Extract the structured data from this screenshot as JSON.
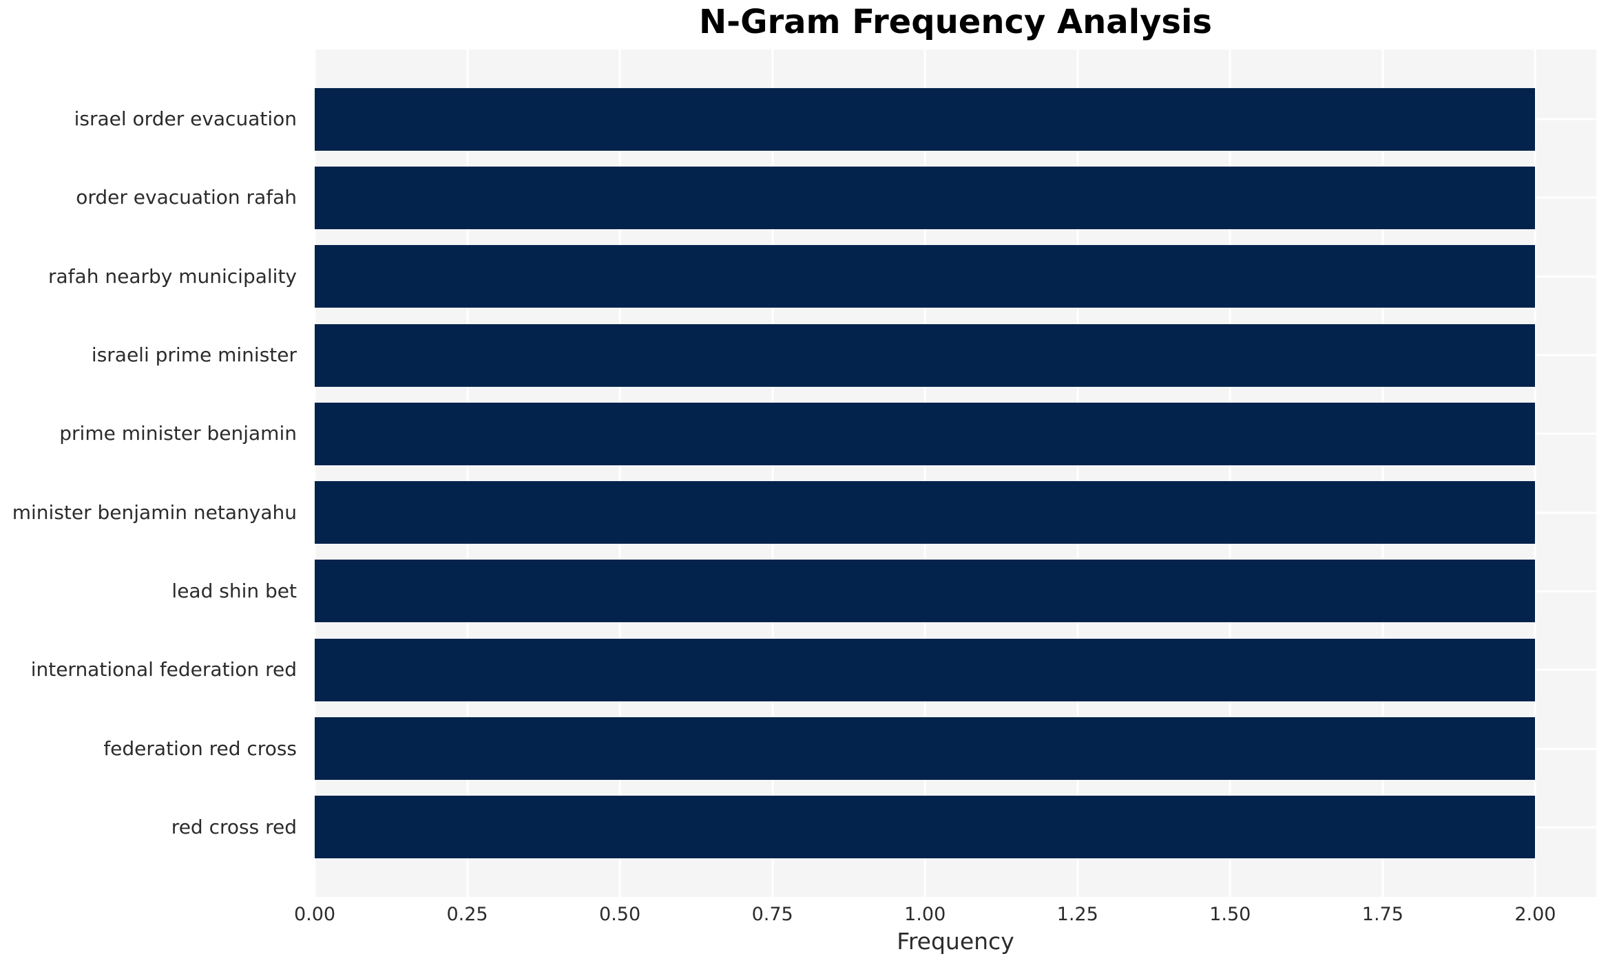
{
  "chart_data": {
    "type": "bar",
    "orientation": "horizontal",
    "title": "N-Gram Frequency Analysis",
    "xlabel": "Frequency",
    "ylabel": "",
    "categories": [
      "israel order evacuation",
      "order evacuation rafah",
      "rafah nearby municipality",
      "israeli prime minister",
      "prime minister benjamin",
      "minister benjamin netanyahu",
      "lead shin bet",
      "international federation red",
      "federation red cross",
      "red cross red"
    ],
    "values": [
      2,
      2,
      2,
      2,
      2,
      2,
      2,
      2,
      2,
      2
    ],
    "x_ticks": [
      "0.00",
      "0.25",
      "0.50",
      "0.75",
      "1.00",
      "1.25",
      "1.50",
      "1.75",
      "2.00"
    ],
    "x_tick_values": [
      0,
      0.25,
      0.5,
      0.75,
      1.0,
      1.25,
      1.5,
      1.75,
      2.0
    ],
    "xlim": [
      0,
      2.1
    ],
    "grid": "on",
    "legend": "none",
    "colors": {
      "bar": "#03234c",
      "plot_background": "#f5f5f6",
      "gridline": "#ffffff",
      "tick_text": "#2b2b2b",
      "title_text": "#000000"
    }
  }
}
